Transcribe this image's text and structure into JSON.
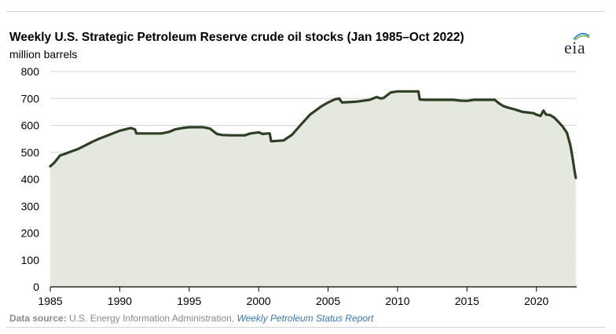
{
  "chart_data": {
    "type": "area",
    "title": "Weekly U.S. Strategic Petroleum Reserve crude oil stocks (Jan 1985–Oct 2022)",
    "ylabel": "million barrels",
    "xlabel": "",
    "xlim": [
      1985,
      2022.9
    ],
    "ylim": [
      0,
      800
    ],
    "x_ticks": [
      1985,
      1990,
      1995,
      2000,
      2005,
      2010,
      2015,
      2020
    ],
    "y_ticks": [
      0,
      100,
      200,
      300,
      400,
      500,
      600,
      700,
      800
    ],
    "grid": "horizontal",
    "line_color": "#2f3f24",
    "fill_color": "#e5e8df",
    "x": [
      1985.0,
      1985.3,
      1985.7,
      1986.0,
      1986.5,
      1987.0,
      1987.5,
      1988.0,
      1988.5,
      1989.0,
      1989.5,
      1990.0,
      1990.4,
      1990.8,
      1991.1,
      1991.2,
      1992.0,
      1993.0,
      1993.5,
      1994.0,
      1994.5,
      1995.0,
      1996.0,
      1996.5,
      1997.0,
      1997.4,
      1998.0,
      1999.0,
      1999.4,
      2000.0,
      2000.3,
      2000.6,
      2000.8,
      2000.9,
      2001.0,
      2001.8,
      2002.4,
      2003.0,
      2003.7,
      2004.5,
      2005.0,
      2005.5,
      2005.8,
      2006.0,
      2007.0,
      2008.0,
      2008.5,
      2008.8,
      2009.0,
      2009.5,
      2010.0,
      2011.0,
      2011.5,
      2011.6,
      2012.0,
      2013.0,
      2014.0,
      2014.5,
      2015.0,
      2015.5,
      2016.0,
      2016.5,
      2017.0,
      2017.3,
      2017.6,
      2018.0,
      2018.4,
      2018.7,
      2019.0,
      2019.5,
      2019.8,
      2020.0,
      2020.3,
      2020.5,
      2020.7,
      2021.0,
      2021.3,
      2021.6,
      2021.9,
      2022.2,
      2022.45,
      2022.6,
      2022.75,
      2022.83
    ],
    "values": [
      448,
      462,
      488,
      493,
      503,
      512,
      525,
      538,
      550,
      560,
      570,
      580,
      585,
      590,
      585,
      570,
      570,
      570,
      575,
      585,
      590,
      593,
      593,
      588,
      568,
      564,
      563,
      563,
      570,
      574,
      568,
      570,
      570,
      541,
      541,
      544,
      565,
      600,
      640,
      670,
      685,
      697,
      700,
      685,
      688,
      695,
      705,
      700,
      702,
      722,
      726,
      726,
      726,
      696,
      695,
      695,
      695,
      692,
      691,
      695,
      695,
      695,
      695,
      682,
      672,
      665,
      660,
      655,
      650,
      647,
      645,
      640,
      635,
      655,
      640,
      638,
      628,
      612,
      595,
      572,
      525,
      480,
      430,
      405
    ]
  },
  "source": {
    "label": "Data source:",
    "text": " U.S. Energy Information Administration, ",
    "link": "Weekly Petroleum Status Report"
  },
  "logo": {
    "text": "eia"
  }
}
